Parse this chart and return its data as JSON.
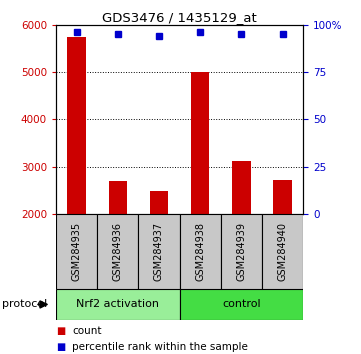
{
  "title": "GDS3476 / 1435129_at",
  "samples": [
    "GSM284935",
    "GSM284936",
    "GSM284937",
    "GSM284938",
    "GSM284939",
    "GSM284940"
  ],
  "counts": [
    5750,
    2700,
    2480,
    5000,
    3130,
    2720
  ],
  "percentile_ranks": [
    96,
    95,
    94,
    96,
    95,
    95
  ],
  "ylim_left": [
    2000,
    6000
  ],
  "ylim_right": [
    0,
    100
  ],
  "yticks_left": [
    2000,
    3000,
    4000,
    5000,
    6000
  ],
  "yticks_right": [
    0,
    25,
    50,
    75,
    100
  ],
  "yticklabels_right": [
    "0",
    "25",
    "50",
    "75",
    "100%"
  ],
  "bar_color": "#cc0000",
  "dot_color": "#0000cc",
  "bar_bottom": 2000,
  "groups": [
    {
      "label": "Nrf2 activation",
      "start": 0,
      "end": 3,
      "color": "#99ee99"
    },
    {
      "label": "control",
      "start": 3,
      "end": 6,
      "color": "#44dd44"
    }
  ],
  "protocol_label": "protocol",
  "legend_count_label": "count",
  "legend_percentile_label": "percentile rank within the sample",
  "bg_color": "#ffffff",
  "bar_width": 0.45,
  "sample_bg_color": "#c8c8c8",
  "title_fontsize": 9.5,
  "tick_fontsize": 7.5,
  "label_fontsize": 7,
  "group_fontsize": 8,
  "legend_fontsize": 7.5
}
